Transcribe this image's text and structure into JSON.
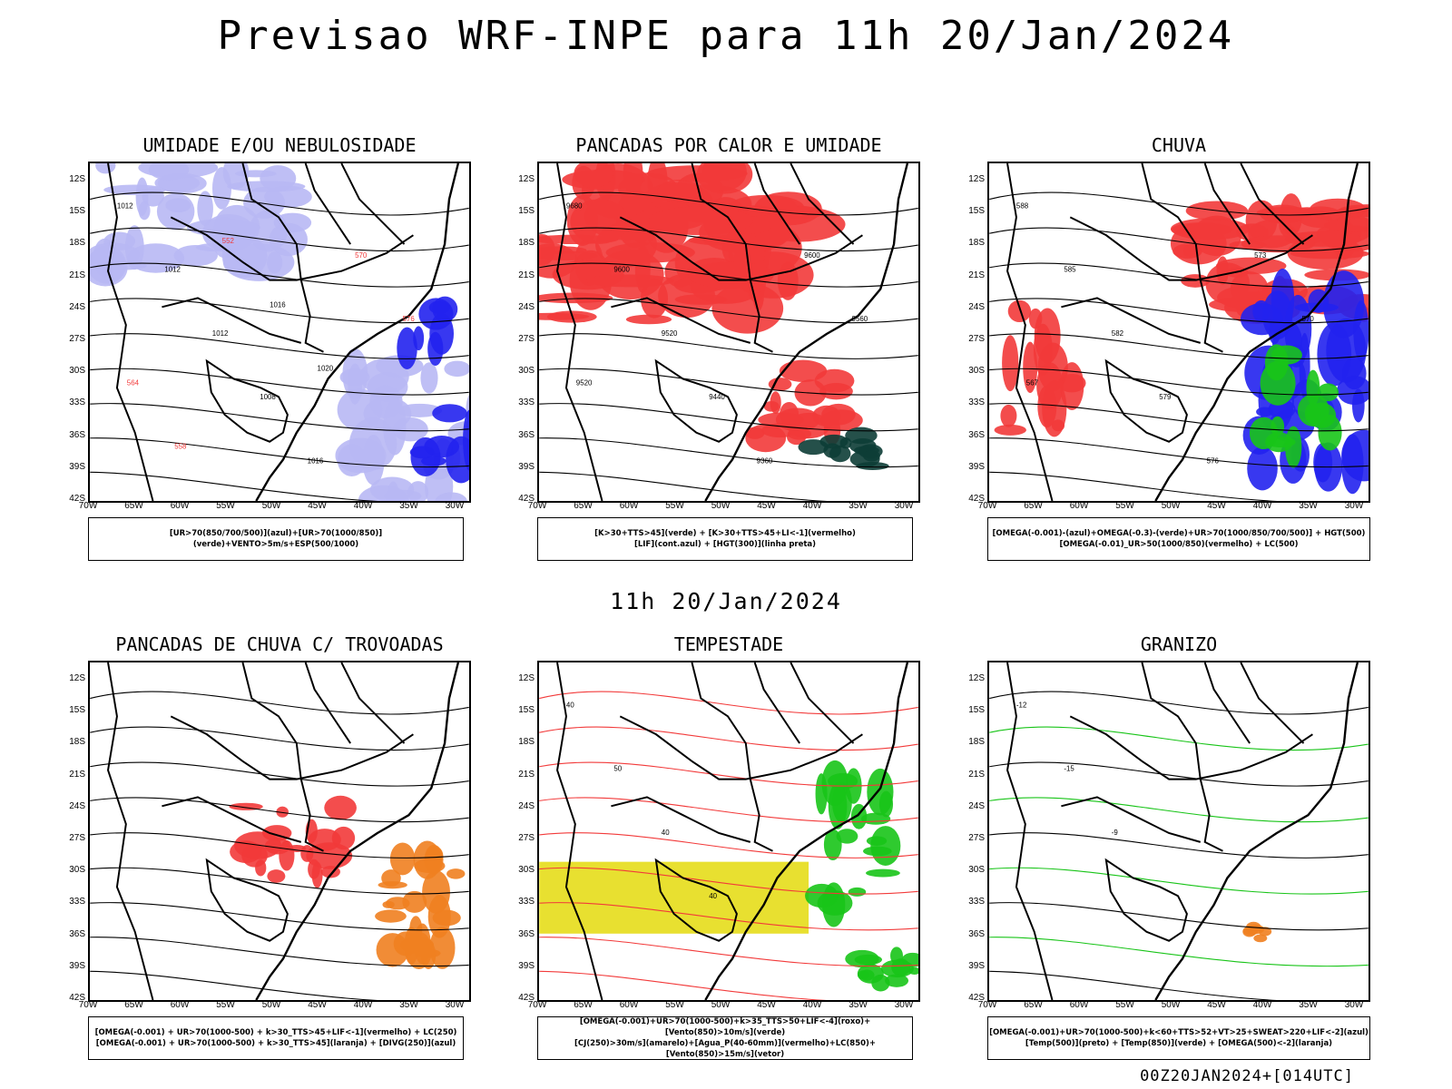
{
  "header": {
    "title": "Previsao WRF-INPE  para 11h 20/Jan/2024"
  },
  "mid_title": "11h 20/Jan/2024",
  "footer": "00Z20JAN2024+[014UTC]",
  "axes": {
    "y_labels": [
      "12S",
      "15S",
      "18S",
      "21S",
      "24S",
      "27S",
      "30S",
      "33S",
      "36S",
      "39S",
      "42S"
    ],
    "x_labels": [
      "70W",
      "65W",
      "60W",
      "55W",
      "50W",
      "45W",
      "40W",
      "35W",
      "30W"
    ]
  },
  "colors": {
    "red": "#f23a3a",
    "blue": "#2222ee",
    "green": "#18c418",
    "lavender": "#b8b8f4",
    "darkteal": "#0d3d36",
    "yellow": "#e8e030",
    "orange": "#f08020"
  },
  "panels": [
    {
      "title": "UMIDADE E/OU NEBULOSIDADE",
      "legend": [
        "[UR>70(850/700/500)](azul)+[UR>70(1000/850)](verde)+VENTO>5m/s+ESP(500/1000)"
      ],
      "contour_labels": [
        "1012",
        "1012",
        "1012",
        "1008",
        "1016",
        "570",
        "576",
        "564",
        "558",
        "552",
        "1016",
        "1020"
      ]
    },
    {
      "title": "PANCADAS POR CALOR E UMIDADE",
      "legend": [
        "[K>30+TTS>45](verde)  +  [K>30+TTS>45+LI<-1](vermelho)",
        "[LIF](cont.azul)  +  [HGT(300)](linha preta)"
      ],
      "contour_labels": [
        "9680",
        "9600",
        "9520",
        "9440",
        "9360",
        "9600",
        "9560",
        "9520"
      ]
    },
    {
      "title": "CHUVA",
      "legend": [
        "[OMEGA(-0.001)-(azul)+OMEGA(-0.3)-(verde)+UR>70(1000/850/700/500)]  +  HGT(500)",
        "[OMEGA(-0.01)_UR>50(1000/850)(vermelho)  +  LC(500)"
      ],
      "contour_labels": [
        "588",
        "585",
        "582",
        "579",
        "576",
        "573",
        "570",
        "567"
      ]
    },
    {
      "title": "PANCADAS DE CHUVA C/ TROVOADAS",
      "legend": [
        "[OMEGA(-0.001)  +  UR>70(1000-500)  +  k>30_TTS>45+LIF<-1](vermelho)  +  LC(250)",
        "[OMEGA(-0.001)  +  UR>70(1000-500)  +  k>30_TTS>45](laranja)  +  [DIVG(250)](azul)"
      ],
      "contour_labels": []
    },
    {
      "title": "TEMPESTADE",
      "legend": [
        "[OMEGA(-0.001)+UR>70(1000-500)+k>35_TTS>50+LIF<-4](roxo)+[Vento(850)>10m/s](verde)",
        "[CJ(250)>30m/s](amarelo)+[Agua_P(40-60mm)](vermelho)+LC(850)+[Vento(850)>15m/s](vetor)"
      ],
      "contour_labels": [
        "40",
        "50",
        "40",
        "40"
      ]
    },
    {
      "title": "GRANIZO",
      "legend": [
        "[OMEGA(-0.001)+UR>70(1000-500)+k<60+TTS>52+VT>25+SWEAT>220+LIF<-2](azul)",
        "[Temp(500)](preto)  +  [Temp(850)](verde)  +  [OMEGA(500)<-2](laranja)"
      ],
      "contour_labels": [
        "-12",
        "-15",
        "-9"
      ]
    }
  ]
}
